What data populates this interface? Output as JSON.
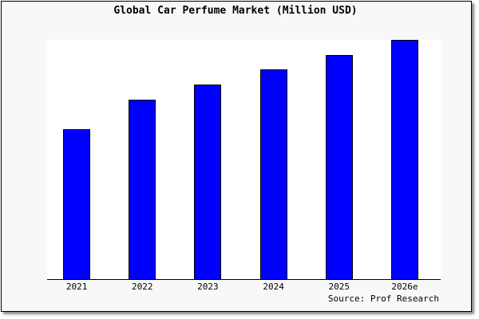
{
  "chart_data": {
    "type": "bar",
    "title": "Global Car Perfume Market (Million USD)",
    "categories": [
      "2021",
      "2022",
      "2023",
      "2024",
      "2025",
      "2026e"
    ],
    "values": [
      62.7,
      75.0,
      81.3,
      87.7,
      93.7,
      100.0
    ],
    "xlabel": "",
    "ylabel": "",
    "ylim": [
      0,
      100
    ],
    "grid": false,
    "bar_color": "#0000ff",
    "source": "Source: Prof Research"
  }
}
